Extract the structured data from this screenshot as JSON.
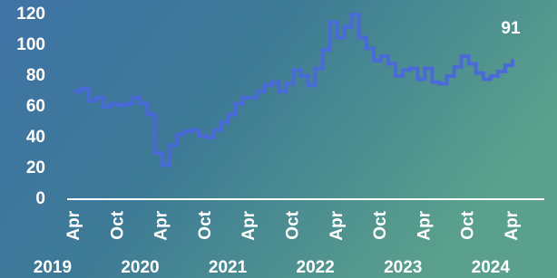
{
  "chart_data": {
    "type": "line",
    "step": true,
    "annotation": "91",
    "x": [
      "2019-04",
      "2019-05",
      "2019-06",
      "2019-07",
      "2019-08",
      "2019-09",
      "2019-10",
      "2019-11",
      "2019-12",
      "2020-01",
      "2020-02",
      "2020-03",
      "2020-04",
      "2020-05",
      "2020-06",
      "2020-07",
      "2020-08",
      "2020-09",
      "2020-10",
      "2020-11",
      "2020-12",
      "2021-01",
      "2021-02",
      "2021-03",
      "2021-04",
      "2021-05",
      "2021-06",
      "2021-07",
      "2021-08",
      "2021-09",
      "2021-10",
      "2021-11",
      "2021-12",
      "2022-01",
      "2022-02",
      "2022-03",
      "2022-04",
      "2022-05",
      "2022-06",
      "2022-07",
      "2022-08",
      "2022-09",
      "2022-10",
      "2022-11",
      "2022-12",
      "2023-01",
      "2023-02",
      "2023-03",
      "2023-04",
      "2023-05",
      "2023-06",
      "2023-07",
      "2023-08",
      "2023-09",
      "2023-10",
      "2023-11",
      "2023-12",
      "2024-01",
      "2024-02",
      "2024-03",
      "2024-04"
    ],
    "series": [
      {
        "color": "#4a6ad8",
        "values": [
          70,
          72,
          64,
          66,
          60,
          62,
          61,
          62,
          66,
          62,
          55,
          30,
          22,
          35,
          42,
          44,
          45,
          41,
          40,
          45,
          50,
          55,
          62,
          66,
          66,
          70,
          74,
          76,
          70,
          75,
          84,
          80,
          74,
          85,
          97,
          115,
          105,
          112,
          120,
          105,
          98,
          90,
          93,
          88,
          80,
          84,
          85,
          78,
          85,
          76,
          75,
          80,
          86,
          93,
          88,
          82,
          78,
          80,
          83,
          87,
          91
        ]
      }
    ],
    "xlim": [
      "2019-03",
      "2024-05"
    ],
    "xticks": [
      {
        "value": "2019-04",
        "label": "Apr"
      },
      {
        "value": "2019-10",
        "label": "Oct"
      },
      {
        "value": "2020-04",
        "label": "Apr"
      },
      {
        "value": "2020-10",
        "label": "Oct"
      },
      {
        "value": "2021-04",
        "label": "Apr"
      },
      {
        "value": "2021-10",
        "label": "Oct"
      },
      {
        "value": "2022-04",
        "label": "Apr"
      },
      {
        "value": "2022-10",
        "label": "Oct"
      },
      {
        "value": "2023-04",
        "label": "Apr"
      },
      {
        "value": "2023-10",
        "label": "Oct"
      },
      {
        "value": "2024-04",
        "label": "Apr"
      }
    ],
    "year_labels": [
      {
        "value": "2019-01",
        "label": "2019"
      },
      {
        "value": "2020-01",
        "label": "2020"
      },
      {
        "value": "2021-01",
        "label": "2021"
      },
      {
        "value": "2022-01",
        "label": "2022"
      },
      {
        "value": "2023-01",
        "label": "2023"
      },
      {
        "value": "2024-01",
        "label": "2024"
      }
    ],
    "ylim": [
      0,
      120
    ],
    "yticks": [
      0,
      20,
      40,
      60,
      80,
      100,
      120
    ]
  }
}
